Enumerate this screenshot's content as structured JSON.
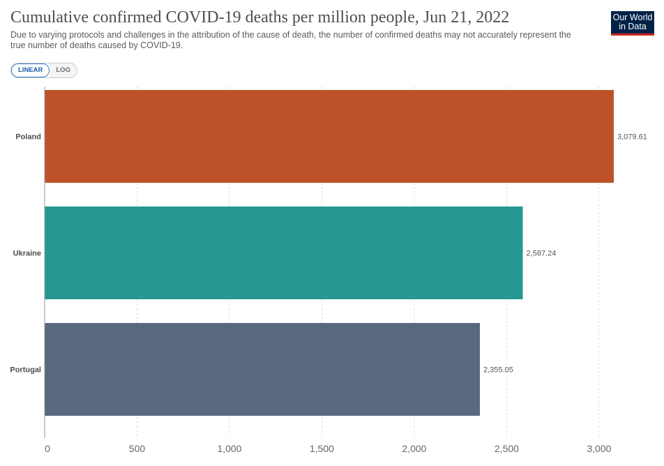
{
  "header": {
    "title": "Cumulative confirmed COVID-19 deaths per million people, Jun 21, 2022",
    "subtitle": "Due to varying protocols and challenges in the attribution of the cause of death, the number of confirmed deaths may not accurately represent the true number of deaths caused by COVID-19."
  },
  "logo": {
    "line1": "Our World",
    "line2": "in Data"
  },
  "controls": {
    "linear_label": "LINEAR",
    "log_label": "LOG",
    "selected": "linear"
  },
  "colors": {
    "poland": "#bd5229",
    "ukraine": "#259891",
    "portugal": "#5a687e",
    "grid": "#dddddd",
    "axis": "#999999"
  },
  "chart_data": {
    "type": "bar",
    "orientation": "horizontal",
    "title": "Cumulative confirmed COVID-19 deaths per million people, Jun 21, 2022",
    "categories": [
      "Poland",
      "Ukraine",
      "Portugal"
    ],
    "values": [
      3079.61,
      2587.24,
      2355.05
    ],
    "value_labels": [
      "3,079.61",
      "2,587.24",
      "2,355.05"
    ],
    "xlim": [
      0,
      3079.61
    ],
    "xticks": [
      0,
      500,
      1000,
      1500,
      2000,
      2500,
      3000
    ],
    "xtick_labels": [
      "0",
      "500",
      "1,000",
      "1,500",
      "2,000",
      "2,500",
      "3,000"
    ],
    "xlabel": "",
    "ylabel": "",
    "grid": true
  }
}
